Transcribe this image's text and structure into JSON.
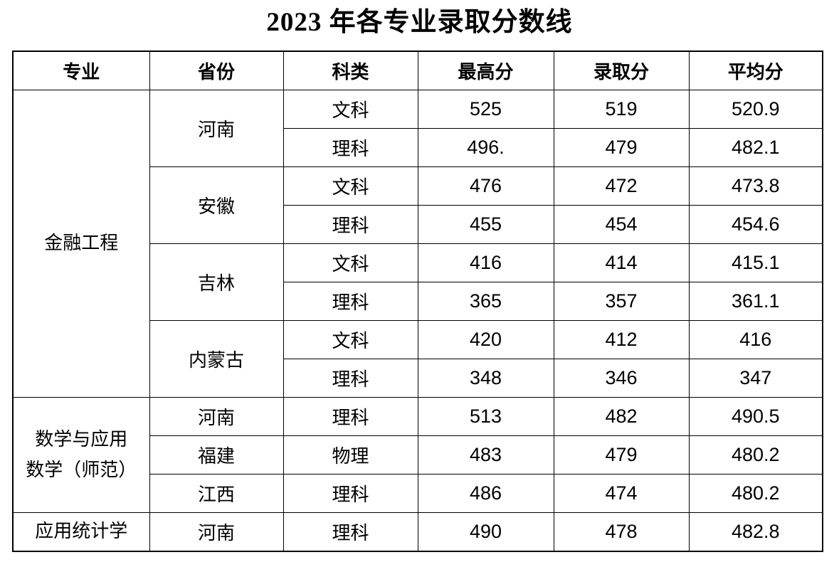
{
  "page": {
    "title": "2023 年各专业录取分数线"
  },
  "table": {
    "headers": [
      "专业",
      "省份",
      "科类",
      "最高分",
      "录取分",
      "平均分"
    ],
    "sections": [
      {
        "major": "金融工程",
        "provinces": [
          {
            "name": "河南",
            "rows": [
              {
                "category": "文科",
                "max": "525",
                "admit": "519",
                "avg": "520.9"
              },
              {
                "category": "理科",
                "max": "496.",
                "admit": "479",
                "avg": "482.1"
              }
            ]
          },
          {
            "name": "安徽",
            "rows": [
              {
                "category": "文科",
                "max": "476",
                "admit": "472",
                "avg": "473.8"
              },
              {
                "category": "理科",
                "max": "455",
                "admit": "454",
                "avg": "454.6"
              }
            ]
          },
          {
            "name": "吉林",
            "rows": [
              {
                "category": "文科",
                "max": "416",
                "admit": "414",
                "avg": "415.1"
              },
              {
                "category": "理科",
                "max": "365",
                "admit": "357",
                "avg": "361.1"
              }
            ]
          },
          {
            "name": "内蒙古",
            "rows": [
              {
                "category": "文科",
                "max": "420",
                "admit": "412",
                "avg": "416"
              },
              {
                "category": "理科",
                "max": "348",
                "admit": "346",
                "avg": "347"
              }
            ]
          }
        ]
      },
      {
        "major": "数学与应用\n数学（师范）",
        "provinces": [
          {
            "name": "河南",
            "rows": [
              {
                "category": "理科",
                "max": "513",
                "admit": "482",
                "avg": "490.5"
              }
            ]
          },
          {
            "name": "福建",
            "rows": [
              {
                "category": "物理",
                "max": "483",
                "admit": "479",
                "avg": "480.2"
              }
            ]
          },
          {
            "name": "江西",
            "rows": [
              {
                "category": "理科",
                "max": "486",
                "admit": "474",
                "avg": "480.2"
              }
            ]
          }
        ]
      },
      {
        "major": "应用统计学",
        "provinces": [
          {
            "name": "河南",
            "rows": [
              {
                "category": "理科",
                "max": "490",
                "admit": "478",
                "avg": "482.8"
              }
            ]
          }
        ]
      }
    ]
  }
}
